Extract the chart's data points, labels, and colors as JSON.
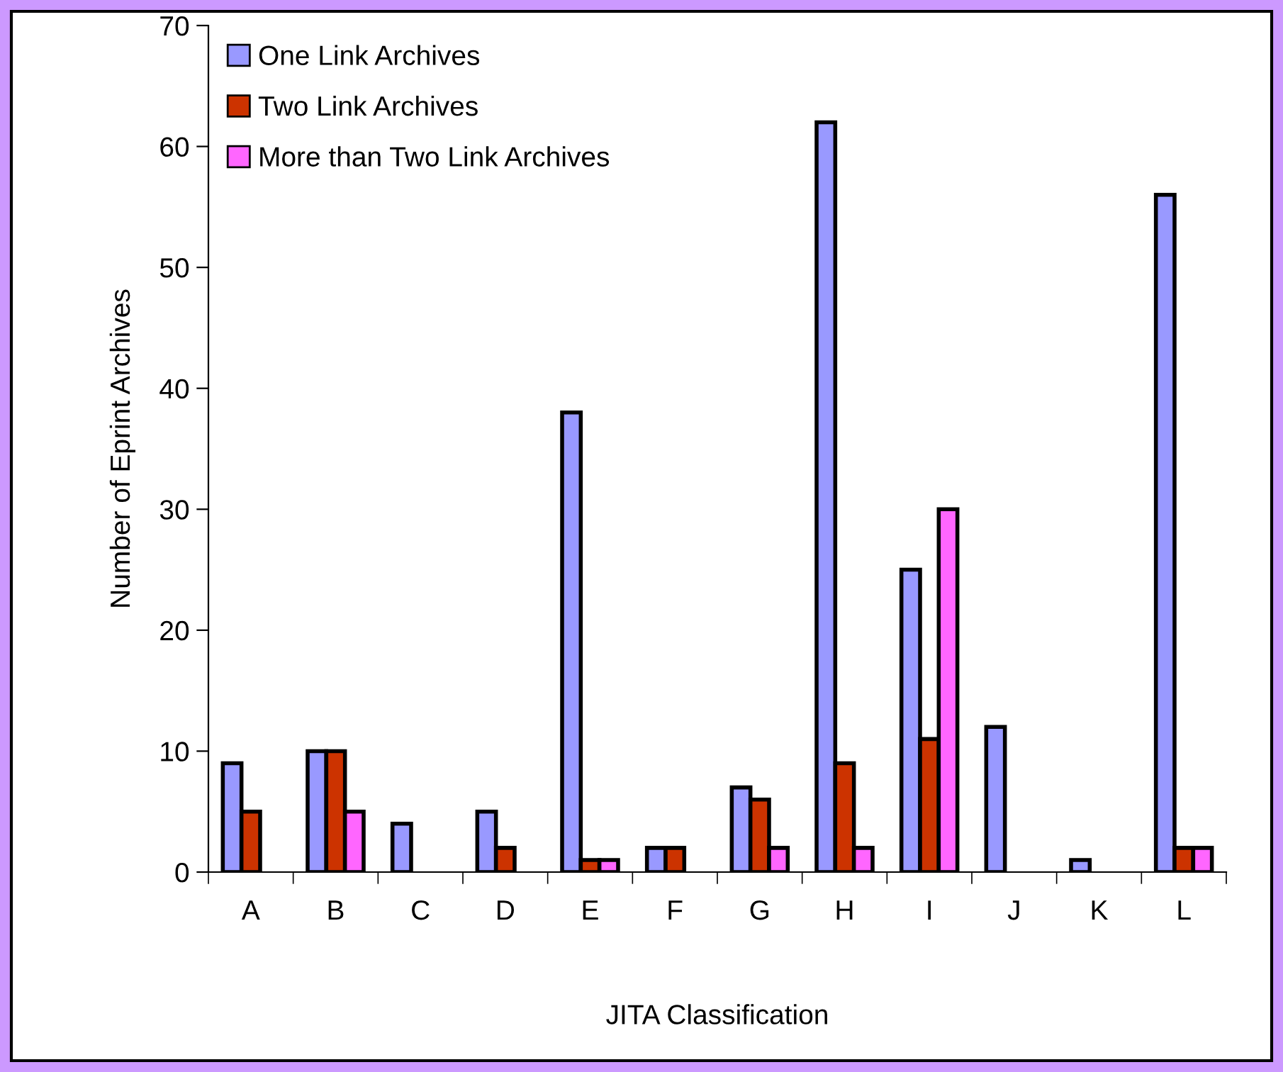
{
  "chart_data": {
    "type": "bar",
    "xlabel": "JITA Classification",
    "ylabel": "Number of Eprint Archives",
    "categories": [
      "A",
      "B",
      "C",
      "D",
      "E",
      "F",
      "G",
      "H",
      "I",
      "J",
      "K",
      "L"
    ],
    "series": [
      {
        "name": "One Link Archives",
        "color": "#9999ff",
        "values": [
          9,
          10,
          4,
          5,
          38,
          2,
          7,
          62,
          25,
          12,
          1,
          56
        ]
      },
      {
        "name": "Two Link Archives",
        "color": "#cc3300",
        "values": [
          5,
          10,
          null,
          2,
          1,
          2,
          6,
          9,
          11,
          null,
          null,
          2
        ]
      },
      {
        "name": "More than Two Link Archives",
        "color": "#ff66ff",
        "values": [
          null,
          5,
          null,
          null,
          1,
          null,
          2,
          2,
          30,
          null,
          null,
          2
        ]
      }
    ],
    "ylim": [
      0,
      70
    ],
    "yticks": [
      0,
      10,
      20,
      30,
      40,
      50,
      60,
      70
    ],
    "grid": false,
    "legend": "top left"
  }
}
